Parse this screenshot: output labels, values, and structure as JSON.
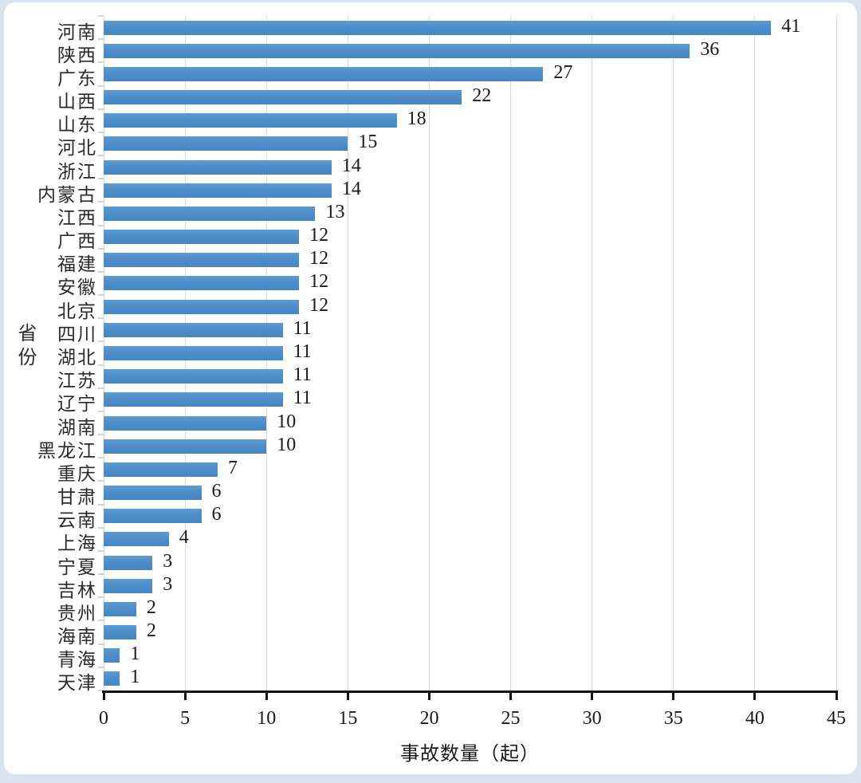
{
  "chart_data": {
    "type": "bar",
    "orientation": "horizontal",
    "title": "",
    "xlabel": "事故数量（起）",
    "ylabel": "省份",
    "xlim": [
      0,
      45
    ],
    "x_ticks": [
      0,
      5,
      10,
      15,
      20,
      25,
      30,
      35,
      40,
      45
    ],
    "grid": "vertical-gridlines-on",
    "legend": "none",
    "bar_color": "#4F8DC9",
    "categories": [
      "河南",
      "陕西",
      "广东",
      "山西",
      "山东",
      "河北",
      "浙江",
      "内蒙古",
      "江西",
      "广西",
      "福建",
      "安徽",
      "北京",
      "四川",
      "湖北",
      "江苏",
      "辽宁",
      "湖南",
      "黑龙江",
      "重庆",
      "甘肃",
      "云南",
      "上海",
      "宁夏",
      "吉林",
      "贵州",
      "海南",
      "青海",
      "天津"
    ],
    "values": [
      41,
      36,
      27,
      22,
      18,
      15,
      14,
      14,
      13,
      12,
      12,
      12,
      12,
      11,
      11,
      11,
      11,
      10,
      10,
      7,
      6,
      6,
      4,
      3,
      3,
      2,
      2,
      1,
      1
    ]
  }
}
